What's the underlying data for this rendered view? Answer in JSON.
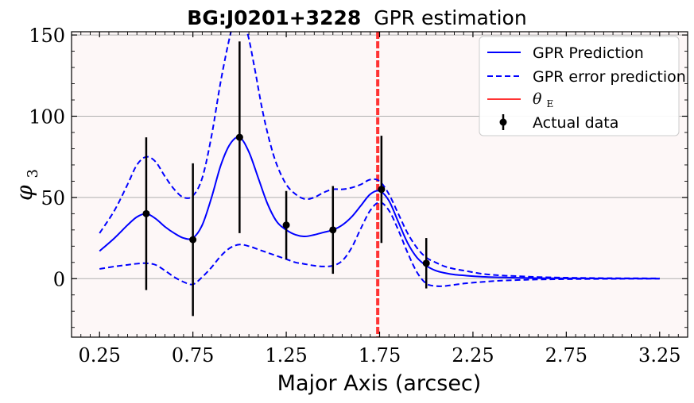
{
  "chart_data": {
    "type": "line",
    "title_bold": "BG:J0201+3228",
    "title_rest": "GPR estimation",
    "xlabel": "Major Axis (arcsec)",
    "ylabel_symbol": "φ",
    "ylabel_subscript": "3",
    "xlim": [
      0.1,
      3.4
    ],
    "ylim": [
      -36,
      152
    ],
    "xticks": [
      0.25,
      0.75,
      1.25,
      1.75,
      2.25,
      2.75,
      3.25
    ],
    "xtick_labels": [
      "0.25",
      "0.75",
      "1.25",
      "1.75",
      "2.25",
      "2.75",
      "3.25"
    ],
    "yticks": [
      0,
      50,
      100,
      150
    ],
    "ytick_labels": [
      "0",
      "50",
      "100",
      "150"
    ],
    "grid": "horizontal",
    "legend_position": "top-right",
    "background": "#fdf7f7",
    "series": [
      {
        "name": "GPR Prediction",
        "style": "solid",
        "color": "#0000ff",
        "x": [
          0.25,
          0.33,
          0.4,
          0.45,
          0.5,
          0.55,
          0.6,
          0.65,
          0.7,
          0.75,
          0.8,
          0.85,
          0.9,
          0.95,
          1.0,
          1.05,
          1.1,
          1.15,
          1.2,
          1.25,
          1.3,
          1.35,
          1.4,
          1.45,
          1.5,
          1.55,
          1.6,
          1.65,
          1.7,
          1.75,
          1.8,
          1.85,
          1.9,
          1.95,
          2.0,
          2.05,
          2.1,
          2.15,
          2.2,
          2.3,
          2.4,
          2.5,
          2.6,
          2.75,
          3.0,
          3.25
        ],
        "y": [
          17,
          25,
          33,
          38,
          40,
          37,
          32,
          28,
          25,
          25,
          33,
          50,
          70,
          83,
          87,
          78,
          62,
          46,
          35,
          30,
          27,
          26,
          27,
          28.5,
          30,
          33,
          38,
          45,
          52,
          54,
          48,
          35,
          22,
          13,
          8,
          5,
          3.5,
          2.5,
          2,
          1.2,
          0.8,
          0.5,
          0.3,
          0.2,
          0.1,
          0
        ]
      },
      {
        "name": "GPR error prediction",
        "style": "dashed",
        "color": "#0000ff",
        "x": [
          0.25,
          0.33,
          0.4,
          0.45,
          0.5,
          0.55,
          0.6,
          0.65,
          0.7,
          0.75,
          0.8,
          0.85,
          0.9,
          0.95,
          0.99,
          1.04,
          1.08,
          1.12,
          1.16,
          1.2,
          1.25,
          1.3,
          1.35,
          1.4,
          1.45,
          1.5,
          1.55,
          1.6,
          1.65,
          1.7,
          1.75,
          1.8,
          1.85,
          1.9,
          1.95,
          2.0,
          2.05,
          2.1,
          2.15,
          2.2,
          2.3,
          2.4,
          2.5,
          2.6,
          2.75,
          3.0,
          3.25
        ],
        "y": [
          28,
          42,
          58,
          70,
          75,
          72,
          63,
          55,
          50,
          51,
          62,
          88,
          122,
          150,
          165,
          152,
          130,
          105,
          85,
          70,
          58,
          52,
          49,
          50,
          53,
          55,
          55,
          56,
          58,
          61,
          60,
          52,
          40,
          28,
          19,
          13,
          10,
          7.5,
          6,
          5,
          3,
          2,
          1.5,
          1,
          0.6,
          0.3,
          0.2
        ]
      },
      {
        "name": "",
        "style": "dashed",
        "color": "#0000ff",
        "x": [
          0.25,
          0.33,
          0.4,
          0.45,
          0.5,
          0.55,
          0.6,
          0.65,
          0.7,
          0.75,
          0.8,
          0.85,
          0.9,
          0.95,
          1.0,
          1.05,
          1.1,
          1.15,
          1.2,
          1.25,
          1.3,
          1.35,
          1.4,
          1.45,
          1.5,
          1.55,
          1.6,
          1.65,
          1.7,
          1.75,
          1.8,
          1.85,
          1.9,
          1.95,
          2.0,
          2.05,
          2.1,
          2.2,
          2.3,
          2.4,
          2.5,
          2.6,
          2.75,
          3.0,
          3.25
        ],
        "y": [
          6,
          7.5,
          8.5,
          9.2,
          9.5,
          8.5,
          5,
          1,
          -2,
          -3.5,
          1,
          7,
          14,
          19,
          21,
          20,
          18,
          16,
          14,
          12,
          10,
          9,
          8,
          7.5,
          8,
          11,
          19,
          31,
          42,
          47,
          42,
          30,
          16,
          4,
          -3,
          -4.5,
          -4.5,
          -3,
          -2,
          -1.2,
          -0.8,
          -0.5,
          -0.3,
          -0.1,
          0
        ]
      }
    ],
    "vline": {
      "name": "θE",
      "label_symbol": "θ",
      "label_subscript": "E",
      "x": 1.74,
      "color": "#ff3333"
    },
    "points": {
      "name": "Actual data",
      "color": "#000000",
      "x": [
        0.5,
        0.75,
        1.0,
        1.25,
        1.5,
        1.76,
        2.0
      ],
      "y": [
        40,
        24,
        87,
        33,
        30,
        55,
        9.5
      ],
      "yerr": [
        47,
        47,
        59,
        21,
        27,
        33,
        15.5
      ]
    }
  }
}
